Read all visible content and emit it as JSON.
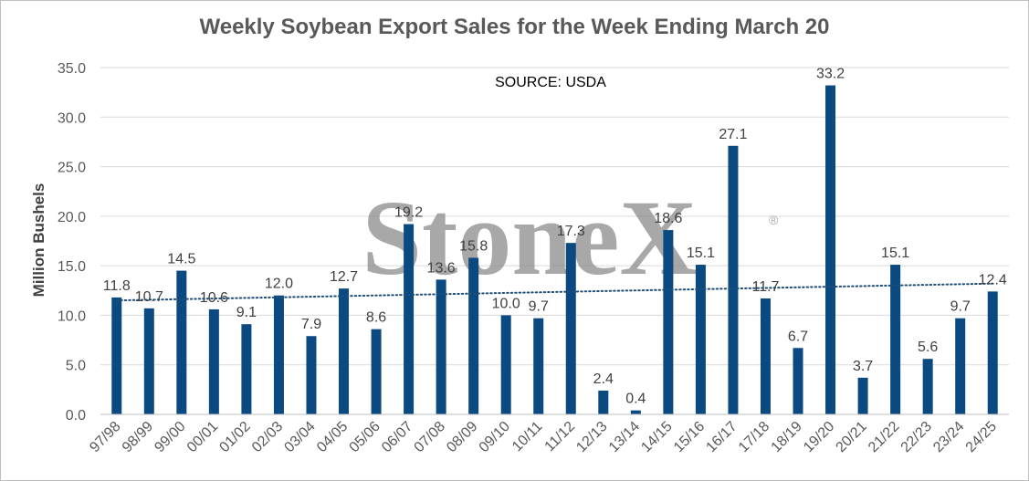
{
  "chart_data": {
    "type": "bar",
    "title": "Weekly Soybean Export Sales for the Week Ending March 20",
    "ylabel": "Million Bushels",
    "xlabel": "",
    "annotation": "SOURCE: USDA",
    "watermark": "StoneX",
    "watermark_mark": "®",
    "ylim": [
      0,
      35
    ],
    "yticks": [
      "0.0",
      "5.0",
      "10.0",
      "15.0",
      "20.0",
      "25.0",
      "30.0",
      "35.0"
    ],
    "categories": [
      "97/98",
      "98/99",
      "99/00",
      "00/01",
      "01/02",
      "02/03",
      "03/04",
      "04/05",
      "05/06",
      "06/07",
      "07/08",
      "08/09",
      "09/10",
      "10/11",
      "11/12",
      "12/13",
      "13/14",
      "14/15",
      "15/16",
      "16/17",
      "17/18",
      "18/19",
      "19/20",
      "20/21",
      "21/22",
      "22/23",
      "23/24",
      "24/25"
    ],
    "values": [
      11.8,
      10.7,
      14.5,
      10.6,
      9.1,
      12.0,
      7.9,
      12.7,
      8.6,
      19.2,
      13.6,
      15.8,
      10.0,
      9.7,
      17.3,
      2.4,
      0.4,
      18.6,
      15.1,
      27.1,
      11.7,
      6.7,
      33.2,
      3.7,
      15.1,
      5.6,
      9.7,
      12.4
    ],
    "data_labels": [
      "11.8",
      "10.7",
      "14.5",
      "10.6",
      "9.1",
      "12.0",
      "7.9",
      "12.7",
      "8.6",
      "19.2",
      "13.6",
      "15.8",
      "10.0",
      "9.7",
      "17.3",
      "2.4",
      "0.4",
      "18.6",
      "15.1",
      "27.1",
      "11.7",
      "6.7",
      "33.2",
      "3.7",
      "15.1",
      "5.6",
      "9.7",
      "12.4"
    ],
    "trendline": {
      "type": "linear",
      "style": "dotted",
      "start": 11.5,
      "end": 13.2
    },
    "grid": true,
    "bar_color": "#0b4a80",
    "trend_color": "#1f4e79",
    "grid_color": "#d9d9d9"
  }
}
